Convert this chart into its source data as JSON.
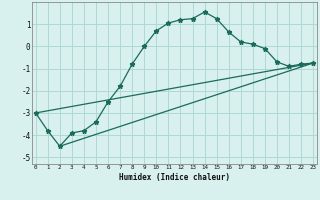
{
  "xlabel": "Humidex (Indice chaleur)",
  "background_color": "#d8f0ee",
  "grid_color": "#b0d8d8",
  "line_color": "#1a6b5a",
  "x_values": [
    0,
    1,
    2,
    3,
    4,
    5,
    6,
    7,
    8,
    9,
    10,
    11,
    12,
    13,
    14,
    15,
    16,
    17,
    18,
    19,
    20,
    21,
    22,
    23
  ],
  "line1": [
    -3.0,
    -3.8,
    -4.5,
    -3.9,
    -3.8,
    -3.4,
    -2.5,
    -1.8,
    -0.8,
    0.0,
    0.7,
    1.05,
    1.2,
    1.25,
    1.55,
    1.25,
    0.65,
    0.2,
    0.1,
    -0.1,
    -0.7,
    -0.9,
    -0.8,
    -0.75
  ],
  "line2_x": [
    0,
    23
  ],
  "line2_y": [
    -3.0,
    -0.75
  ],
  "line3_x": [
    2,
    23
  ],
  "line3_y": [
    -4.5,
    -0.75
  ],
  "ylim": [
    -5.3,
    2.0
  ],
  "xlim": [
    -0.3,
    23.3
  ],
  "yticks": [
    -5,
    -4,
    -3,
    -2,
    -1,
    0,
    1
  ],
  "xticks": [
    0,
    1,
    2,
    3,
    4,
    5,
    6,
    7,
    8,
    9,
    10,
    11,
    12,
    13,
    14,
    15,
    16,
    17,
    18,
    19,
    20,
    21,
    22,
    23
  ]
}
